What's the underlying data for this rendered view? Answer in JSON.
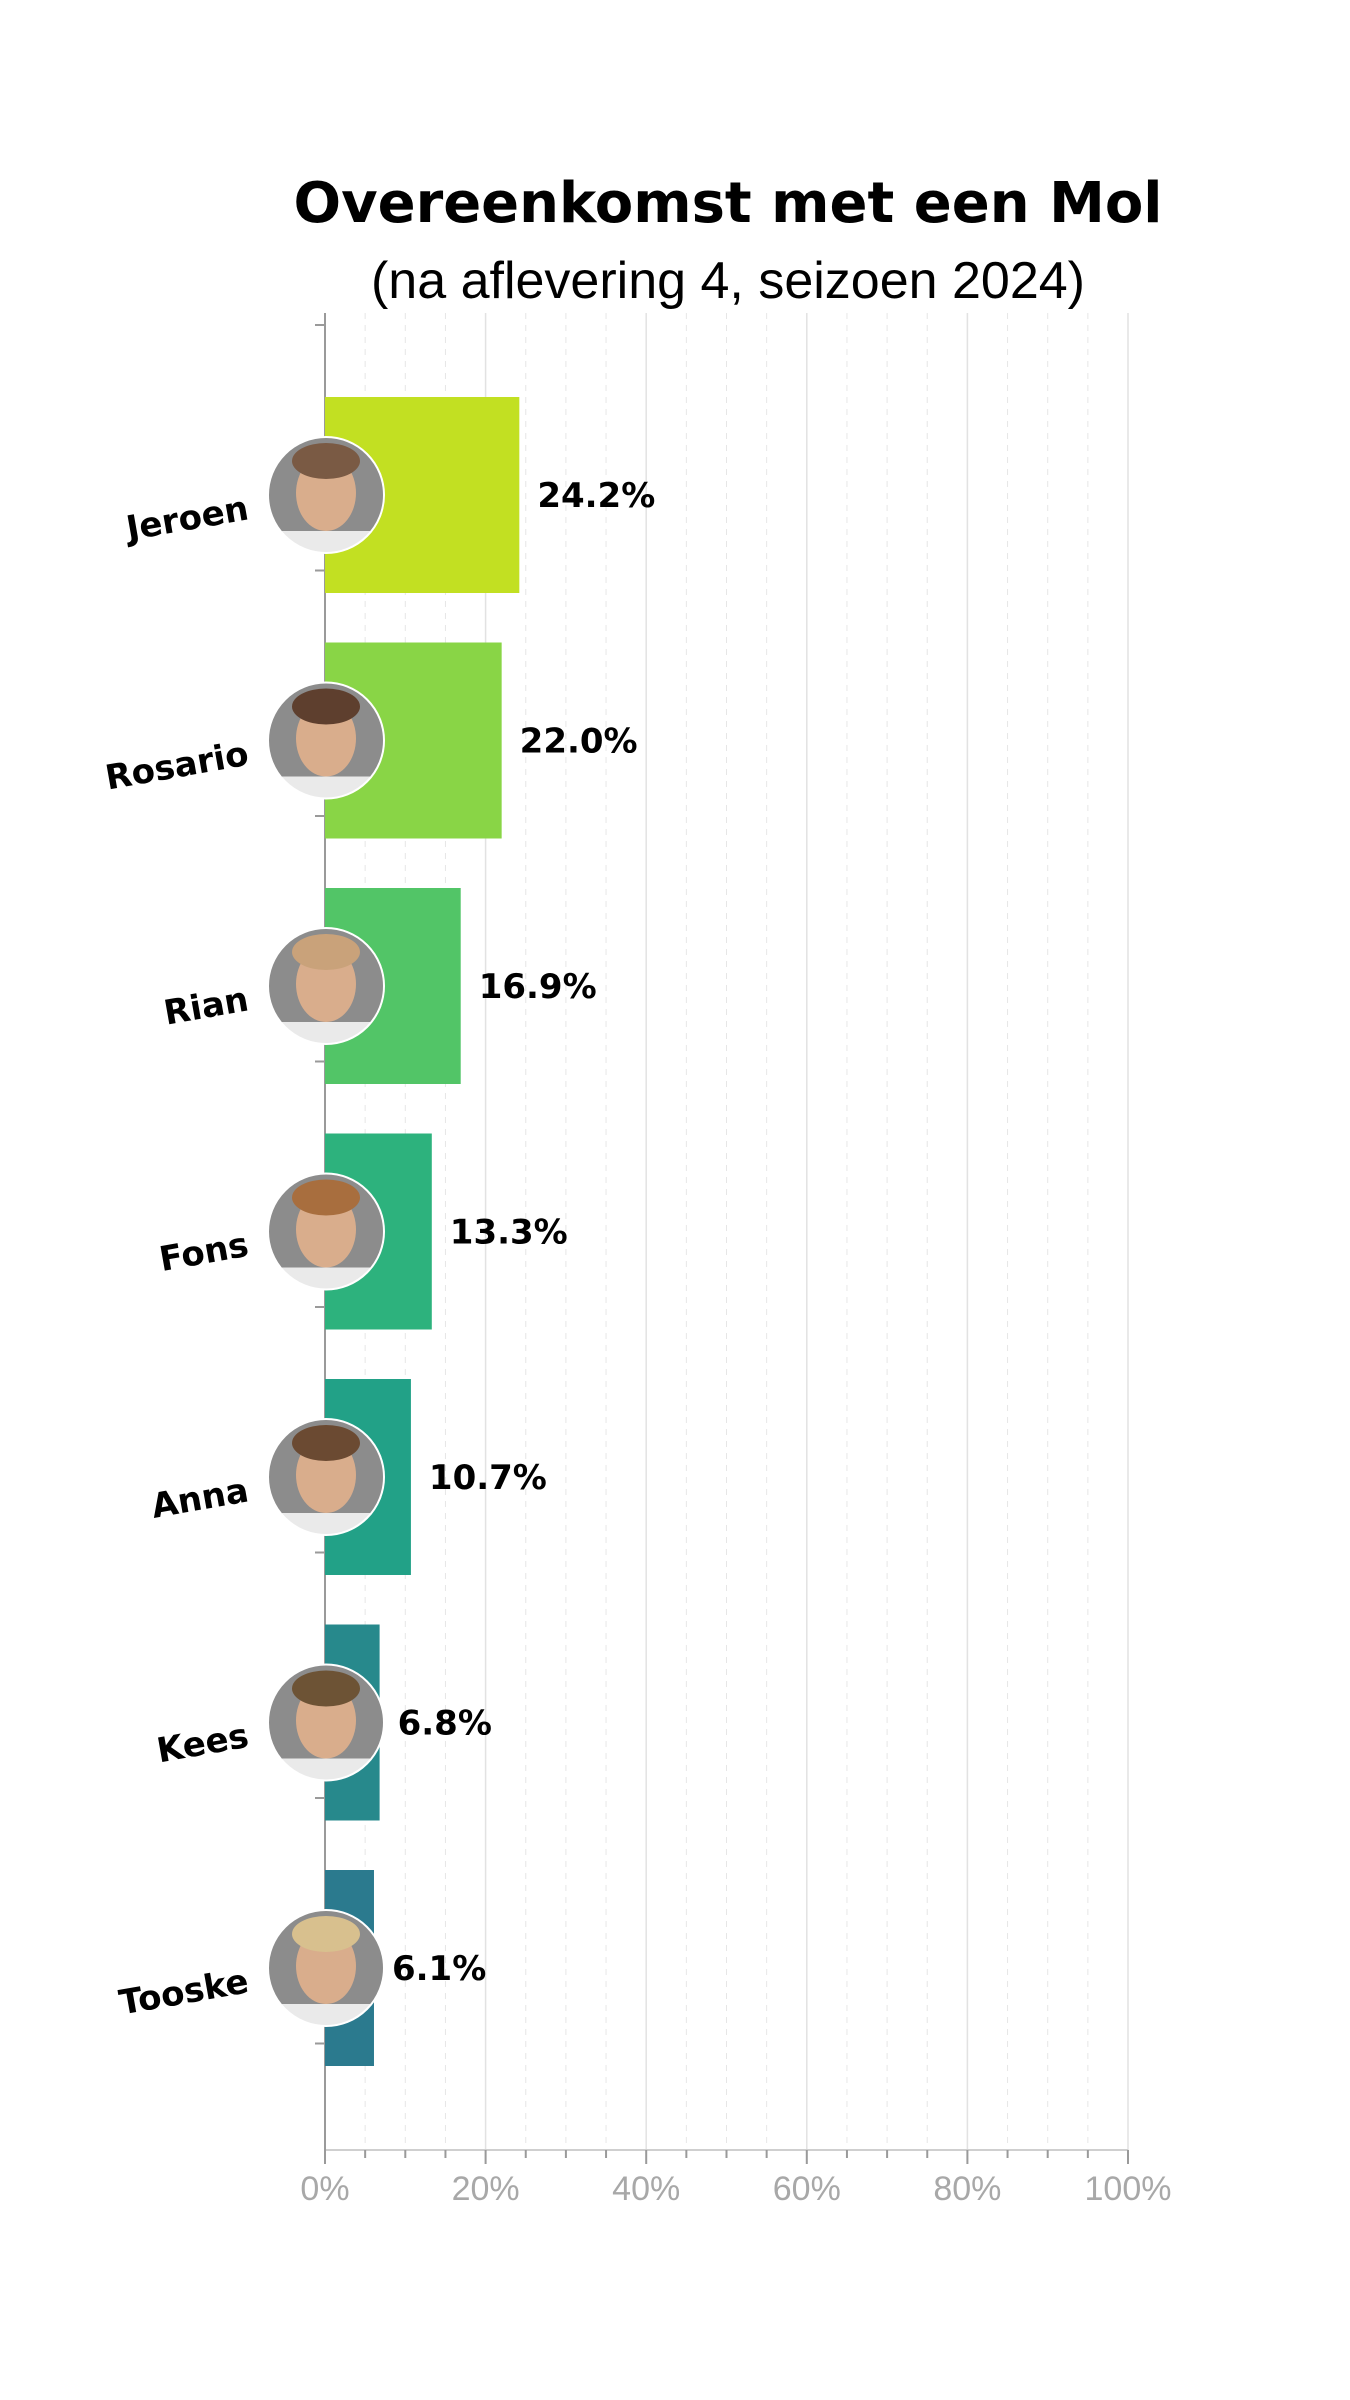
{
  "chart_data": {
    "type": "bar",
    "orientation": "horizontal",
    "title": "Overeenkomst met een Mol",
    "subtitle": "(na aflevering 4, seizoen 2024)",
    "xlabel": "",
    "ylabel": "",
    "xlim": [
      0,
      100
    ],
    "x_ticks": [
      "0%",
      "20%",
      "40%",
      "60%",
      "80%",
      "100%"
    ],
    "x_tick_values": [
      0,
      20,
      40,
      60,
      80,
      100
    ],
    "grid": true,
    "categories": [
      "Jeroen",
      "Rosario",
      "Rian",
      "Fons",
      "Anna",
      "Kees",
      "Tooske"
    ],
    "values": [
      24.2,
      22.0,
      16.9,
      13.3,
      10.7,
      6.8,
      6.1
    ],
    "value_labels": [
      "24.2%",
      "22.0%",
      "16.9%",
      "13.3%",
      "10.7%",
      "6.8%",
      "6.1%"
    ],
    "colors": [
      "#c2e022",
      "#89d546",
      "#52c567",
      "#2db27d",
      "#22a187",
      "#27898c",
      "#2b7a8e"
    ],
    "portrait_colors": [
      "#7a5a44",
      "#5e3f2e",
      "#c9a27a",
      "#a86e3e",
      "#6b4a32",
      "#6d5335",
      "#d8c08e"
    ]
  }
}
